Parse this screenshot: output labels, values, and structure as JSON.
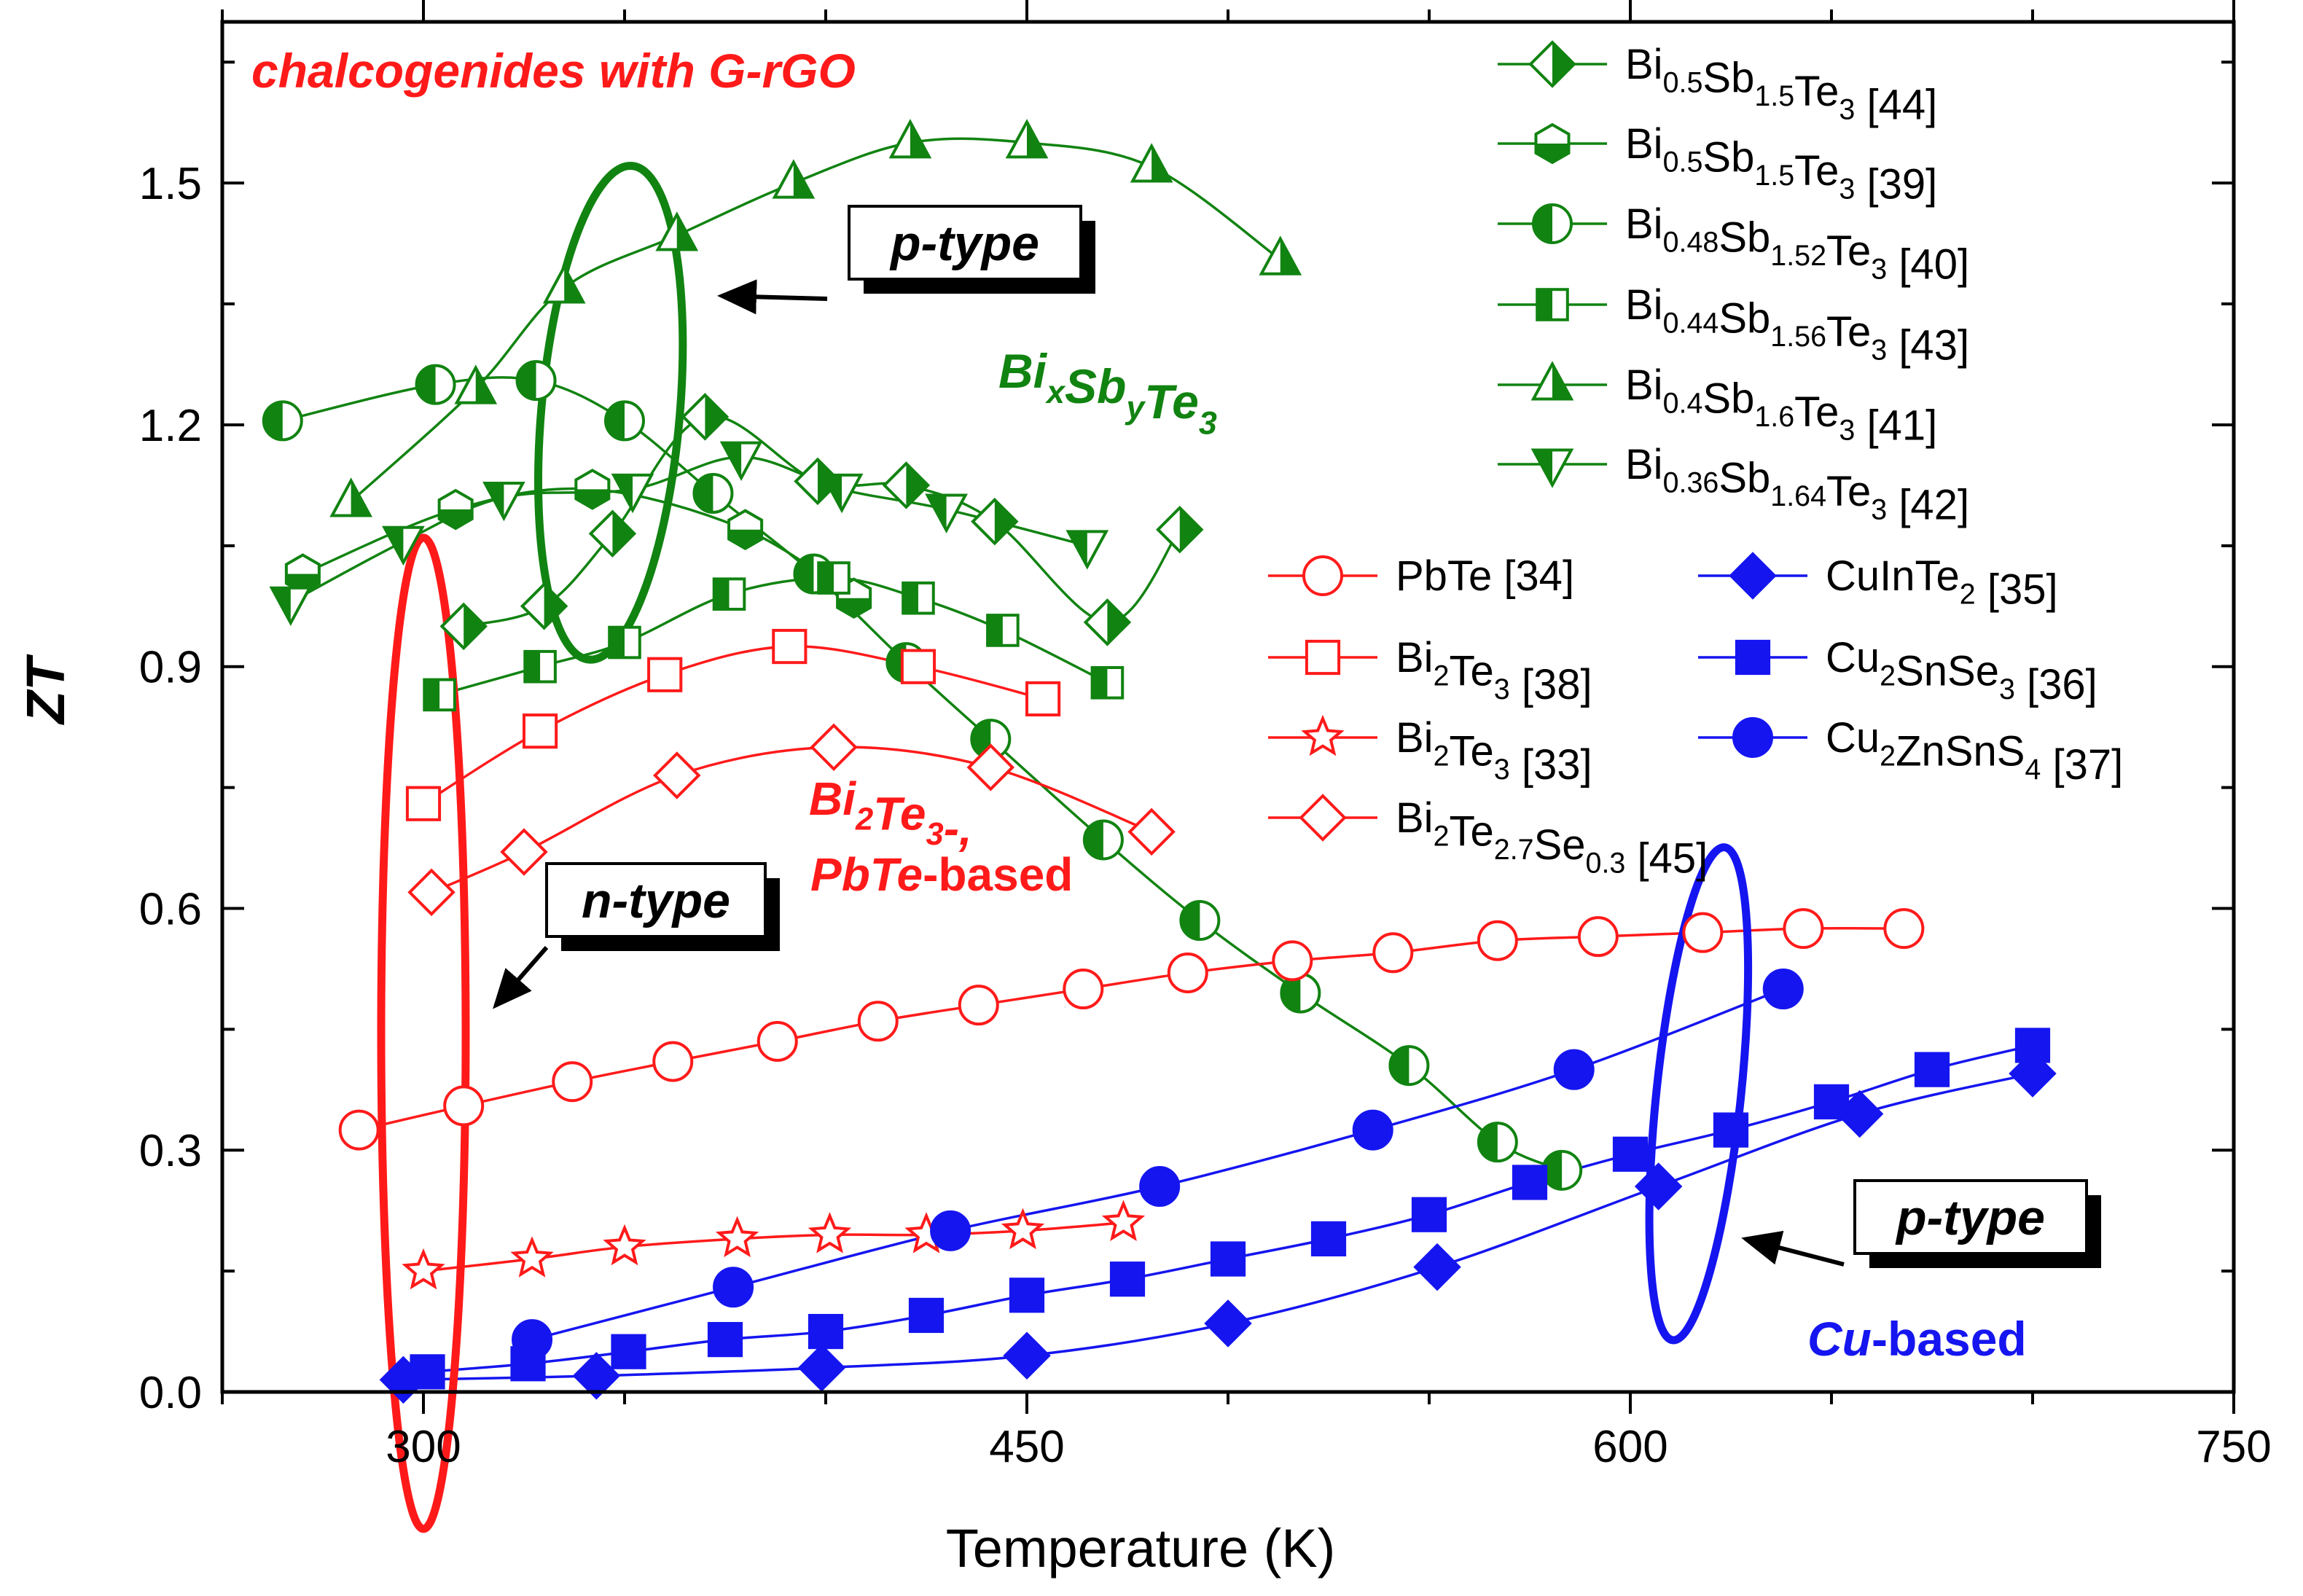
{
  "chart_data": {
    "type": "scatter",
    "title": "chalcogenides with G-rGO",
    "xlabel": "Temperature (K)",
    "ylabel": "ZT",
    "xlim": [
      250,
      750
    ],
    "ylim": [
      0,
      1.7
    ],
    "xticks": [
      300,
      450,
      600,
      750
    ],
    "yticks": [
      0.0,
      0.3,
      0.6,
      0.9,
      1.2,
      1.5
    ],
    "colors": {
      "green": "#118311",
      "red": "#ff1a1a",
      "blue": "#1515f0"
    },
    "series": [
      {
        "id": "bst44",
        "name": "Bi0.5Sb1.5Te3 [44]",
        "color": "green",
        "marker": "diamond-half",
        "label": [
          [
            "Bi",
            ""
          ],
          [
            "0.5",
            "sub"
          ],
          [
            "Sb",
            ""
          ],
          [
            "1.5",
            "sub"
          ],
          [
            "Te",
            ""
          ],
          [
            "3",
            "sub"
          ],
          [
            " [44]",
            ""
          ]
        ],
        "x": [
          310,
          330,
          347,
          370,
          398,
          420,
          442,
          470,
          488
        ],
        "y": [
          0.95,
          0.975,
          1.065,
          1.21,
          1.13,
          1.125,
          1.08,
          0.955,
          1.07
        ]
      },
      {
        "id": "bst39",
        "name": "Bi0.5Sb1.5Te3 [39]",
        "color": "green",
        "marker": "hexagon-half",
        "label": [
          [
            "Bi",
            ""
          ],
          [
            "0.5",
            "sub"
          ],
          [
            "Sb",
            ""
          ],
          [
            "1.5",
            "sub"
          ],
          [
            "Te",
            ""
          ],
          [
            "3",
            "sub"
          ],
          [
            " [39]",
            ""
          ]
        ],
        "x": [
          270,
          308,
          342,
          380,
          407
        ],
        "y": [
          1.015,
          1.095,
          1.12,
          1.07,
          0.985
        ]
      },
      {
        "id": "bst40",
        "name": "Bi0.48Sb1.52Te3 [40]",
        "color": "green",
        "marker": "circle-half",
        "label": [
          [
            "Bi",
            ""
          ],
          [
            "0.48",
            "sub"
          ],
          [
            "Sb",
            ""
          ],
          [
            "1.52",
            "sub"
          ],
          [
            "Te",
            ""
          ],
          [
            "3",
            "sub"
          ],
          [
            " [40]",
            ""
          ]
        ],
        "x": [
          265,
          303,
          328,
          350,
          372,
          397,
          420,
          441,
          469,
          493,
          518,
          545,
          567,
          583
        ],
        "y": [
          1.205,
          1.25,
          1.255,
          1.205,
          1.115,
          1.015,
          0.905,
          0.81,
          0.685,
          0.585,
          0.495,
          0.405,
          0.31,
          0.275
        ]
      },
      {
        "id": "bst43",
        "name": "Bi0.44Sb1.56Te3 [43]",
        "color": "green",
        "marker": "square-half",
        "label": [
          [
            "Bi",
            ""
          ],
          [
            "0.44",
            "sub"
          ],
          [
            "Sb",
            ""
          ],
          [
            "1.56",
            "sub"
          ],
          [
            "Te",
            ""
          ],
          [
            "3",
            "sub"
          ],
          [
            " [43]",
            ""
          ]
        ],
        "x": [
          304,
          329,
          350,
          376,
          402,
          423,
          444,
          470
        ],
        "y": [
          0.865,
          0.9,
          0.93,
          0.99,
          1.01,
          0.985,
          0.945,
          0.88
        ]
      },
      {
        "id": "bst41",
        "name": "Bi0.4Sb1.6Te3 [41]",
        "color": "green",
        "marker": "triangle-up-half",
        "label": [
          [
            "Bi",
            ""
          ],
          [
            "0.4",
            "sub"
          ],
          [
            "Sb",
            ""
          ],
          [
            "1.6",
            "sub"
          ],
          [
            "Te",
            ""
          ],
          [
            "3",
            "sub"
          ],
          [
            " [41]",
            ""
          ]
        ],
        "x": [
          282,
          313,
          335,
          363,
          392,
          421,
          450,
          481,
          513
        ],
        "y": [
          1.105,
          1.245,
          1.37,
          1.435,
          1.5,
          1.55,
          1.55,
          1.52,
          1.405
        ]
      },
      {
        "id": "bst42",
        "name": "Bi0.36Sb1.64Te3 [42]",
        "color": "green",
        "marker": "triangle-down-half",
        "label": [
          [
            "Bi",
            ""
          ],
          [
            "0.36",
            "sub"
          ],
          [
            "Sb",
            ""
          ],
          [
            "1.64",
            "sub"
          ],
          [
            "Te",
            ""
          ],
          [
            "3",
            "sub"
          ],
          [
            " [42]",
            ""
          ]
        ],
        "x": [
          267,
          295,
          320,
          352,
          379,
          404,
          430,
          465
        ],
        "y": [
          0.98,
          1.055,
          1.11,
          1.12,
          1.16,
          1.12,
          1.095,
          1.05
        ]
      },
      {
        "id": "pbte34",
        "name": "PbTe [34]",
        "color": "red",
        "marker": "circle-open",
        "label": [
          [
            "PbTe [34]",
            ""
          ]
        ],
        "x": [
          284,
          310,
          337,
          362,
          388,
          413,
          438,
          464,
          490,
          516,
          541,
          567,
          592,
          618,
          643,
          668
        ],
        "y": [
          0.325,
          0.355,
          0.385,
          0.41,
          0.435,
          0.46,
          0.48,
          0.5,
          0.52,
          0.535,
          0.545,
          0.56,
          0.565,
          0.57,
          0.575,
          0.575
        ]
      },
      {
        "id": "bt38",
        "name": "Bi2Te3 [38]",
        "color": "red",
        "marker": "square-open",
        "label": [
          [
            "Bi",
            ""
          ],
          [
            "2",
            "sub"
          ],
          [
            "Te",
            ""
          ],
          [
            "3",
            "sub"
          ],
          [
            " [38]",
            ""
          ]
        ],
        "x": [
          300,
          329,
          360,
          391,
          423,
          454
        ],
        "y": [
          0.73,
          0.82,
          0.89,
          0.925,
          0.9,
          0.86
        ]
      },
      {
        "id": "bt33",
        "name": "Bi2Te3 [33]",
        "color": "red",
        "marker": "star-open",
        "label": [
          [
            "Bi",
            ""
          ],
          [
            "2",
            "sub"
          ],
          [
            "Te",
            ""
          ],
          [
            "3",
            "sub"
          ],
          [
            " [33]",
            ""
          ]
        ],
        "x": [
          300,
          327,
          350,
          378,
          401,
          425,
          449,
          474
        ],
        "y": [
          0.15,
          0.165,
          0.18,
          0.19,
          0.195,
          0.195,
          0.2,
          0.21
        ]
      },
      {
        "id": "bts45",
        "name": "Bi2Te2.7Se0.3 [45]",
        "color": "red",
        "marker": "diamond-open",
        "label": [
          [
            "Bi",
            ""
          ],
          [
            "2",
            "sub"
          ],
          [
            "Te",
            ""
          ],
          [
            "2.7",
            "sub"
          ],
          [
            "Se",
            ""
          ],
          [
            "0.3",
            "sub"
          ],
          [
            " [45]",
            ""
          ]
        ],
        "x": [
          302,
          325,
          363,
          402,
          441,
          481
        ],
        "y": [
          0.62,
          0.67,
          0.765,
          0.8,
          0.775,
          0.695
        ]
      },
      {
        "id": "cite35",
        "name": "CuInTe2 [35]",
        "color": "blue",
        "marker": "diamond-filled",
        "label": [
          [
            "CuInTe",
            ""
          ],
          [
            "2",
            "sub"
          ],
          [
            " [35]",
            ""
          ]
        ],
        "x": [
          295,
          343,
          399,
          450,
          500,
          552,
          607,
          657,
          700
        ],
        "y": [
          0.015,
          0.02,
          0.03,
          0.045,
          0.085,
          0.155,
          0.255,
          0.345,
          0.395
        ]
      },
      {
        "id": "cts36",
        "name": "Cu2SnSe3 [36]",
        "color": "blue",
        "marker": "square-filled",
        "label": [
          [
            "Cu",
            ""
          ],
          [
            "2",
            "sub"
          ],
          [
            "SnSe",
            ""
          ],
          [
            "3",
            "sub"
          ],
          [
            " [36]",
            ""
          ]
        ],
        "x": [
          301,
          326,
          351,
          375,
          400,
          425,
          450,
          475,
          500,
          525,
          550,
          575,
          600,
          625,
          650,
          675,
          700
        ],
        "y": [
          0.025,
          0.035,
          0.05,
          0.065,
          0.075,
          0.095,
          0.12,
          0.14,
          0.165,
          0.19,
          0.22,
          0.26,
          0.295,
          0.325,
          0.36,
          0.4,
          0.43
        ]
      },
      {
        "id": "czts37",
        "name": "Cu2ZnSnS4 [37]",
        "color": "blue",
        "marker": "circle-filled",
        "label": [
          [
            "Cu",
            ""
          ],
          [
            "2",
            "sub"
          ],
          [
            "ZnSnS",
            ""
          ],
          [
            "4",
            "sub"
          ],
          [
            " [37]",
            ""
          ]
        ],
        "x": [
          327,
          377,
          431,
          483,
          536,
          586,
          638
        ],
        "y": [
          0.065,
          0.13,
          0.2,
          0.255,
          0.325,
          0.4,
          0.5
        ]
      }
    ],
    "annotations": {
      "p_type_top": "p-type",
      "bisbte_label": [
        [
          "Bi",
          ""
        ],
        [
          "x",
          "sub"
        ],
        [
          "Sb",
          ""
        ],
        [
          "y",
          "sub"
        ],
        [
          "Te",
          ""
        ],
        [
          "3",
          "sub"
        ]
      ],
      "n_type": "n-type",
      "bite_label_1": [
        [
          "Bi",
          ""
        ],
        [
          "2",
          "sub"
        ],
        [
          "Te",
          ""
        ],
        [
          "3",
          "sub"
        ],
        [
          "-,",
          ""
        ]
      ],
      "bite_label_2": [
        [
          "PbTe",
          "italic"
        ],
        [
          "-based",
          ""
        ]
      ],
      "p_type_bottom": "p-type",
      "cu_label": [
        [
          "Cu",
          "italic"
        ],
        [
          "-based",
          ""
        ]
      ]
    }
  }
}
